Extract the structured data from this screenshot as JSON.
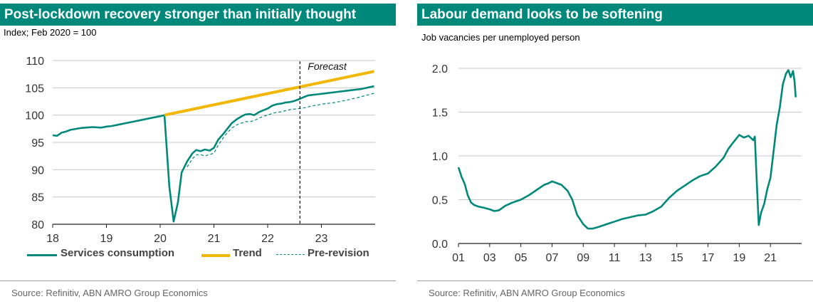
{
  "left": {
    "title": "Post-lockdown recovery stronger than initially thought",
    "subtitle": "Index; Feb 2020 = 100",
    "source": "Source: Refinitiv, ABN AMRO Group Economics",
    "forecast_label": "Forecast",
    "legend": {
      "services": "Services consumption",
      "trend": "Trend",
      "prerevision": "Pre-revision"
    }
  },
  "right": {
    "title": "Labour demand looks to be softening",
    "subtitle": "Job vacancies per unemployed person",
    "source": "Source: Refinitiv, ABN AMRO Group Economics"
  },
  "colors": {
    "teal": "#00897b",
    "gold": "#f2b700",
    "grid": "#c8c8c8"
  },
  "chart_data": [
    {
      "type": "line",
      "title": "Post-lockdown recovery stronger than initially thought",
      "ylabel": "Index; Feb 2020 = 100",
      "xlim": [
        2018.0,
        2024.0
      ],
      "ylim": [
        80,
        110
      ],
      "yticks": [
        80,
        85,
        90,
        95,
        100,
        105,
        110
      ],
      "xticks": [
        2018,
        2019,
        2020,
        2021,
        2022,
        2023
      ],
      "xtick_labels": [
        "18",
        "19",
        "20",
        "21",
        "22",
        "23"
      ],
      "forecast_start": 2022.6,
      "grid": true,
      "legend_position": "bottom",
      "series": [
        {
          "name": "Services consumption",
          "color": "#00897b",
          "style": "solid",
          "x": [
            2018.0,
            2018.08,
            2018.17,
            2018.25,
            2018.33,
            2018.5,
            2018.6,
            2018.75,
            2018.9,
            2019.0,
            2019.1,
            2019.25,
            2019.4,
            2019.5,
            2019.6,
            2019.75,
            2019.9,
            2020.0,
            2020.08,
            2020.17,
            2020.25,
            2020.33,
            2020.4,
            2020.5,
            2020.6,
            2020.67,
            2020.75,
            2020.83,
            2020.92,
            2021.0,
            2021.08,
            2021.17,
            2021.25,
            2021.33,
            2021.42,
            2021.5,
            2021.58,
            2021.67,
            2021.75,
            2021.83,
            2021.92,
            2022.0,
            2022.08,
            2022.17,
            2022.25,
            2022.33,
            2022.42,
            2022.5,
            2022.58,
            2022.67,
            2022.75,
            2022.83,
            2022.92,
            2023.0,
            2023.25,
            2023.5,
            2023.75,
            2023.98
          ],
          "y": [
            96.3,
            96.2,
            96.8,
            97.0,
            97.3,
            97.6,
            97.7,
            97.8,
            97.7,
            97.9,
            98.0,
            98.3,
            98.6,
            98.8,
            99.0,
            99.3,
            99.6,
            99.8,
            100.0,
            87.0,
            80.5,
            84.0,
            89.5,
            91.5,
            93.0,
            93.6,
            93.4,
            93.7,
            93.5,
            94.0,
            95.5,
            96.5,
            97.5,
            98.5,
            99.2,
            99.7,
            100.1,
            100.2,
            100.0,
            100.5,
            100.9,
            101.2,
            101.7,
            102.0,
            102.1,
            102.3,
            102.4,
            102.6,
            102.9,
            103.3,
            103.6,
            103.7,
            103.8,
            103.9,
            104.2,
            104.5,
            104.8,
            105.3
          ]
        },
        {
          "name": "Trend",
          "color": "#f2b700",
          "style": "solid",
          "x": [
            2020.08,
            2023.98
          ],
          "y": [
            100.0,
            108.0
          ]
        },
        {
          "name": "Pre-revision",
          "color": "#00897b",
          "style": "dashed",
          "x": [
            2020.5,
            2020.6,
            2020.67,
            2020.75,
            2020.83,
            2020.92,
            2021.0,
            2021.08,
            2021.17,
            2021.25,
            2021.33,
            2021.42,
            2021.5,
            2021.58,
            2021.67,
            2021.75,
            2021.83,
            2021.92,
            2022.0,
            2022.08,
            2022.17,
            2022.25,
            2022.33,
            2022.42,
            2022.5,
            2022.58,
            2022.67,
            2022.75,
            2022.83,
            2022.92,
            2023.0,
            2023.25,
            2023.5,
            2023.75,
            2023.98
          ],
          "y": [
            90.5,
            92.0,
            92.7,
            92.8,
            92.5,
            92.8,
            93.0,
            94.5,
            95.8,
            96.8,
            97.6,
            98.2,
            98.5,
            98.8,
            98.8,
            99.0,
            99.4,
            99.8,
            100.0,
            100.3,
            100.5,
            100.6,
            100.8,
            101.0,
            101.1,
            101.2,
            101.3,
            101.5,
            101.7,
            101.8,
            102.0,
            102.3,
            102.8,
            103.4,
            104.0
          ]
        }
      ]
    },
    {
      "type": "line",
      "title": "Labour demand looks to be softening",
      "ylabel": "Job vacancies per unemployed person",
      "xlim": [
        2001.0,
        2023.0
      ],
      "ylim": [
        0.0,
        2.0
      ],
      "yticks": [
        0.0,
        0.5,
        1.0,
        1.5,
        2.0
      ],
      "ytick_labels": [
        "0.0",
        "0.5",
        "1.0",
        "1.5",
        "2.0"
      ],
      "xticks": [
        2001,
        2003,
        2005,
        2007,
        2009,
        2011,
        2013,
        2015,
        2017,
        2019,
        2021
      ],
      "xtick_labels": [
        "01",
        "03",
        "05",
        "07",
        "09",
        "11",
        "13",
        "15",
        "17",
        "19",
        "21"
      ],
      "grid": true,
      "series": [
        {
          "name": "",
          "color": "#00897b",
          "style": "solid",
          "x": [
            2001.0,
            2001.2,
            2001.4,
            2001.6,
            2001.8,
            2002.0,
            2002.3,
            2002.6,
            2003.0,
            2003.3,
            2003.6,
            2004.0,
            2004.5,
            2005.0,
            2005.5,
            2006.0,
            2006.5,
            2006.8,
            2007.0,
            2007.3,
            2007.6,
            2008.0,
            2008.3,
            2008.6,
            2009.0,
            2009.3,
            2009.6,
            2010.0,
            2010.5,
            2011.0,
            2011.5,
            2012.0,
            2012.5,
            2013.0,
            2013.5,
            2014.0,
            2014.5,
            2015.0,
            2015.5,
            2016.0,
            2016.5,
            2017.0,
            2017.5,
            2018.0,
            2018.3,
            2018.6,
            2019.0,
            2019.3,
            2019.6,
            2019.9,
            2020.0,
            2020.1,
            2020.25,
            2020.4,
            2020.6,
            2020.8,
            2021.0,
            2021.2,
            2021.4,
            2021.6,
            2021.8,
            2022.0,
            2022.15,
            2022.3,
            2022.45,
            2022.55,
            2022.62
          ],
          "y": [
            0.87,
            0.76,
            0.68,
            0.55,
            0.47,
            0.44,
            0.42,
            0.41,
            0.39,
            0.37,
            0.38,
            0.43,
            0.47,
            0.5,
            0.55,
            0.61,
            0.67,
            0.69,
            0.71,
            0.69,
            0.67,
            0.6,
            0.5,
            0.33,
            0.22,
            0.17,
            0.17,
            0.19,
            0.22,
            0.25,
            0.28,
            0.3,
            0.32,
            0.33,
            0.37,
            0.42,
            0.52,
            0.6,
            0.66,
            0.72,
            0.77,
            0.8,
            0.88,
            0.98,
            1.08,
            1.15,
            1.24,
            1.21,
            1.23,
            1.18,
            1.22,
            0.8,
            0.21,
            0.35,
            0.45,
            0.62,
            0.75,
            1.05,
            1.35,
            1.55,
            1.82,
            1.94,
            1.98,
            1.9,
            1.97,
            1.85,
            1.67
          ]
        }
      ]
    }
  ]
}
